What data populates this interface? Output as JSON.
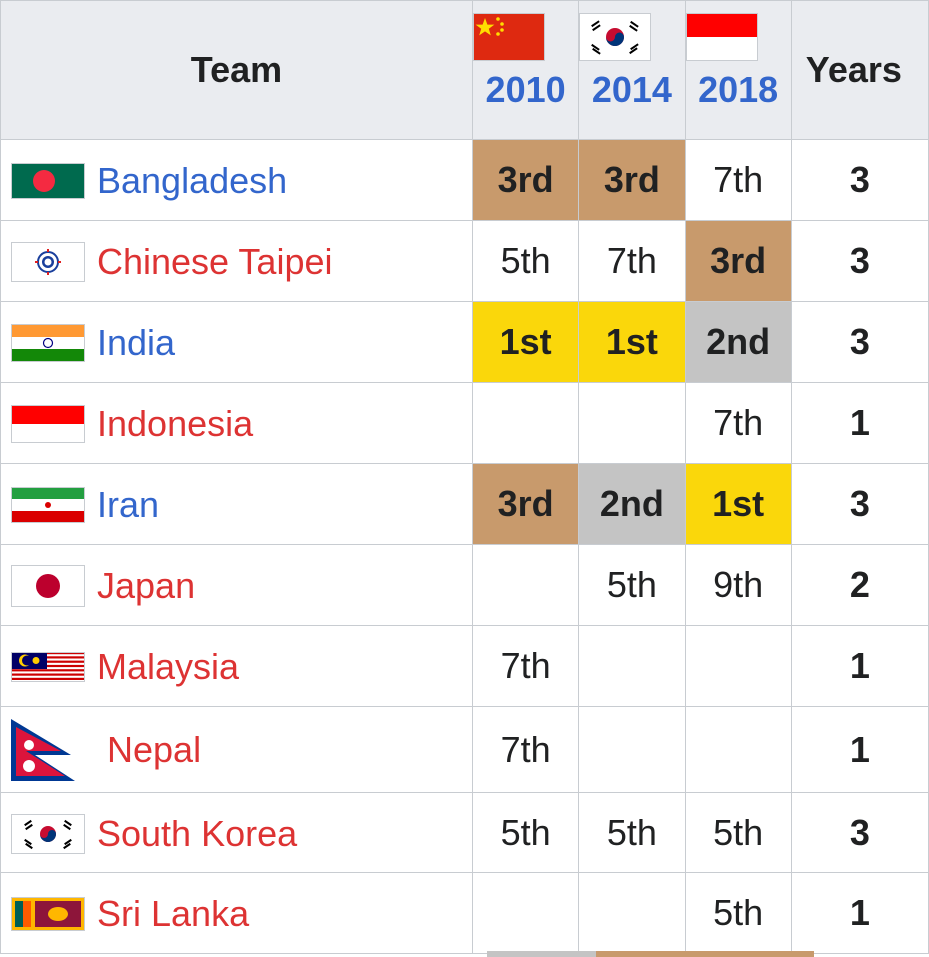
{
  "header": {
    "team": "Team",
    "years_label": "Years",
    "columns": [
      {
        "year": "2010",
        "flag_icon": "china-flag-icon"
      },
      {
        "year": "2014",
        "flag_icon": "south-korea-flag-icon"
      },
      {
        "year": "2018",
        "flag_icon": "indonesia-flag-icon"
      }
    ]
  },
  "rows": [
    {
      "team": "Bangladesh",
      "flag_icon": "bangladesh-flag-icon",
      "link_color": "blue",
      "r2010": "3rd",
      "r2014": "3rd",
      "r2018": "7th",
      "years": "3"
    },
    {
      "team": "Chinese Taipei",
      "flag_icon": "chinese-taipei-flag-icon",
      "link_color": "red",
      "r2010": "5th",
      "r2014": "7th",
      "r2018": "3rd",
      "years": "3"
    },
    {
      "team": "India",
      "flag_icon": "india-flag-icon",
      "link_color": "blue",
      "r2010": "1st",
      "r2014": "1st",
      "r2018": "2nd",
      "years": "3"
    },
    {
      "team": "Indonesia",
      "flag_icon": "indonesia-flag-icon",
      "link_color": "red",
      "r2010": "",
      "r2014": "",
      "r2018": "7th",
      "years": "1"
    },
    {
      "team": "Iran",
      "flag_icon": "iran-flag-icon",
      "link_color": "blue",
      "r2010": "3rd",
      "r2014": "2nd",
      "r2018": "1st",
      "years": "3"
    },
    {
      "team": "Japan",
      "flag_icon": "japan-flag-icon",
      "link_color": "red",
      "r2010": "",
      "r2014": "5th",
      "r2018": "9th",
      "years": "2"
    },
    {
      "team": "Malaysia",
      "flag_icon": "malaysia-flag-icon",
      "link_color": "red",
      "r2010": "7th",
      "r2014": "",
      "r2018": "",
      "years": "1"
    },
    {
      "team": "Nepal",
      "flag_icon": "nepal-flag-icon",
      "link_color": "red",
      "r2010": "7th",
      "r2014": "",
      "r2018": "",
      "years": "1"
    },
    {
      "team": "South Korea",
      "flag_icon": "south-korea-flag-icon",
      "link_color": "red",
      "r2010": "5th",
      "r2014": "5th",
      "r2018": "5th",
      "years": "3"
    },
    {
      "team": "Sri Lanka",
      "flag_icon": "sri-lanka-flag-icon",
      "link_color": "red",
      "r2010": "",
      "r2014": "",
      "r2018": "5th",
      "years": "1"
    }
  ],
  "medal_colors": {
    "gold": "#fad70b",
    "silver": "#c4c4c4",
    "bronze": "#c89a6c"
  },
  "link_colors": {
    "blue": "#3366cc",
    "red": "#d33333"
  }
}
